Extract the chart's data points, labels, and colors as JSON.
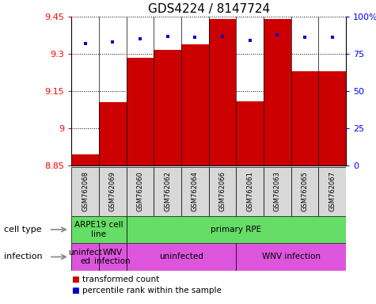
{
  "title": "GDS4224 / 8147724",
  "samples": [
    "GSM762068",
    "GSM762069",
    "GSM762060",
    "GSM762062",
    "GSM762064",
    "GSM762066",
    "GSM762061",
    "GSM762063",
    "GSM762065",
    "GSM762067"
  ],
  "transformed_count": [
    8.895,
    9.105,
    9.285,
    9.315,
    9.34,
    9.44,
    9.11,
    9.44,
    9.23,
    9.23
  ],
  "percentile_rank": [
    82,
    83,
    85,
    87,
    86,
    87,
    84,
    88,
    86,
    86
  ],
  "ylim_left": [
    8.85,
    9.45
  ],
  "ylim_right": [
    0,
    100
  ],
  "yticks_left": [
    8.85,
    9.0,
    9.15,
    9.3,
    9.45
  ],
  "ytick_labels_left": [
    "8.85",
    "9",
    "9.15",
    "9.3",
    "9.45"
  ],
  "yticks_right": [
    0,
    25,
    50,
    75,
    100
  ],
  "ytick_labels_right": [
    "0",
    "25",
    "50",
    "75",
    "100%"
  ],
  "bar_color": "#cc0000",
  "dot_color": "#0000cc",
  "bar_bottom": 8.85,
  "groups_ct": [
    {
      "start": 0,
      "end": 1,
      "label": "ARPE19 cell\nline",
      "color": "#66dd66"
    },
    {
      "start": 2,
      "end": 9,
      "label": "primary RPE",
      "color": "#66dd66"
    }
  ],
  "groups_inf": [
    {
      "start": 0,
      "end": 0,
      "label": "uninfect\ned",
      "color": "#dd55dd"
    },
    {
      "start": 1,
      "end": 1,
      "label": "WNV\ninfection",
      "color": "#dd55dd"
    },
    {
      "start": 2,
      "end": 5,
      "label": "uninfected",
      "color": "#dd55dd"
    },
    {
      "start": 6,
      "end": 9,
      "label": "WNV infection",
      "color": "#dd55dd"
    }
  ],
  "cell_type_label": "cell type",
  "infection_label": "infection",
  "legend_bar_label": "transformed count",
  "legend_dot_label": "percentile rank within the sample",
  "title_fontsize": 11,
  "tick_fontsize": 8,
  "sample_fontsize": 6,
  "annot_fontsize": 7.5,
  "legend_fontsize": 7.5,
  "rowlabel_fontsize": 8
}
